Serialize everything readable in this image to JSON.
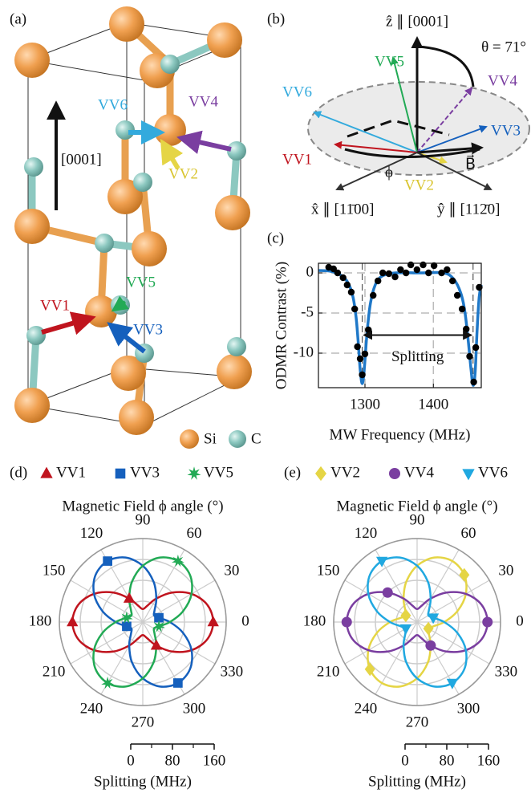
{
  "panels": {
    "a": {
      "label": "(a)",
      "vv6": "VV6",
      "vv4": "VV4",
      "direction": "[0001]",
      "vv2": "VV2",
      "vv5": "VV5",
      "vv1": "VV1",
      "vv3": "VV3",
      "legend": [
        "Si",
        "C"
      ]
    },
    "b": {
      "label": "(b)",
      "z_axis": "ẑ ∥ [0001]",
      "theta": "θ = 71°",
      "vv5": "VV5",
      "vv4": "VV4",
      "vv6": "VV6",
      "vv3": "VV3",
      "vv1": "VV1",
      "vv2": "VV2",
      "field": "B⃗",
      "phi": "ϕ",
      "x_axis": "x̂ ∥ [11̄00]",
      "y_axis": "ŷ ∥ [112̄0]"
    }
  },
  "chart_data": [
    {
      "type": "line",
      "label": "(c)",
      "xlabel": "MW Frequency (MHz)",
      "ylabel": "ODMR Contrast (%)",
      "annotation": "Splitting",
      "xlim": [
        1232,
        1470
      ],
      "ylim": [
        -14.3,
        1.2
      ],
      "xticks": [
        1300,
        1400
      ],
      "yticks": [
        0,
        -5,
        -10
      ],
      "grid": true,
      "series": [
        {
          "mode": "markers",
          "color": "#000000",
          "x": [
            1247,
            1254,
            1260,
            1268,
            1274,
            1280,
            1285,
            1289,
            1293,
            1296,
            1300,
            1305,
            1312,
            1319,
            1326,
            1335,
            1344,
            1352,
            1360,
            1367,
            1376,
            1385,
            1393,
            1401,
            1412,
            1420,
            1428,
            1435,
            1442,
            1448,
            1453,
            1459,
            1462,
            1467
          ],
          "values": [
            0.7,
            0.5,
            0,
            -0.6,
            -1.5,
            -2.4,
            -4.5,
            -9.2,
            -10.7,
            -12.7,
            -10.1,
            -7.1,
            -2.8,
            -1,
            0,
            -0.1,
            -0.5,
            0.4,
            0,
            1,
            0.4,
            1,
            0,
            0.9,
            0,
            0.4,
            -1,
            -2.8,
            -4.5,
            -7,
            -10.4,
            -13.6,
            -9.3,
            -1.8
          ]
        },
        {
          "mode": "line",
          "color": "#1f78c8",
          "x": [
            1232,
            1250,
            1265,
            1275,
            1282,
            1287,
            1290,
            1293,
            1296,
            1299,
            1303,
            1308,
            1315,
            1325,
            1345,
            1380,
            1415,
            1430,
            1440,
            1446,
            1451,
            1455,
            1458,
            1461,
            1464,
            1467,
            1470
          ],
          "values": [
            0.3,
            0.2,
            -0.3,
            -1.2,
            -2.8,
            -5.5,
            -8.5,
            -12,
            -13.8,
            -12,
            -7.5,
            -3.8,
            -1.5,
            -0.4,
            0,
            0,
            0,
            -0.8,
            -2.5,
            -4.8,
            -8.5,
            -12,
            -14,
            -12.5,
            -7,
            -3,
            -1.5
          ]
        }
      ]
    },
    {
      "type": "polar",
      "label": "(d)",
      "title": "Magnetic Field ϕ angle (°)",
      "rlabel": "Splitting (MHz)",
      "rlim": [
        0,
        160
      ],
      "rticks": [
        0,
        80,
        160
      ],
      "thetaticks": [
        0,
        30,
        60,
        90,
        120,
        150,
        180,
        210,
        240,
        270,
        300,
        330
      ],
      "curve_theta": [
        0,
        15,
        30,
        45,
        60,
        75,
        90,
        105,
        120,
        135,
        150,
        165,
        180,
        195,
        210,
        225,
        240,
        255,
        270,
        285,
        300,
        315,
        330,
        345
      ],
      "series": [
        {
          "name": "VV1",
          "color": "#c0141e",
          "marker": "triangle",
          "theta": [
            0,
            120,
            180,
            300
          ],
          "values": [
            135,
            52,
            135,
            52
          ],
          "curve": [
            135,
            128,
            108,
            80,
            52,
            32,
            25,
            32,
            52,
            80,
            108,
            128,
            135,
            128,
            108,
            80,
            52,
            32,
            25,
            32,
            52,
            80,
            108,
            128
          ]
        },
        {
          "name": "VV3",
          "color": "#1560bd",
          "marker": "square",
          "theta": [
            15,
            120,
            195,
            300
          ],
          "values": [
            32,
            135,
            32,
            135
          ],
          "curve": [
            52,
            32,
            25,
            32,
            52,
            80,
            108,
            128,
            135,
            128,
            108,
            80,
            52,
            32,
            25,
            32,
            52,
            80,
            108,
            128,
            135,
            128,
            108,
            80
          ]
        },
        {
          "name": "VV5",
          "color": "#22aa55",
          "marker": "star",
          "theta": [
            60,
            165,
            240,
            345
          ],
          "values": [
            135,
            32,
            135,
            32
          ],
          "curve": [
            52,
            80,
            108,
            128,
            135,
            128,
            108,
            80,
            52,
            32,
            25,
            32,
            52,
            80,
            108,
            128,
            135,
            128,
            108,
            80,
            52,
            32,
            25,
            32
          ]
        }
      ]
    },
    {
      "type": "polar",
      "label": "(e)",
      "title": "Magnetic Field ϕ angle (°)",
      "rlabel": "Splitting (MHz)",
      "rlim": [
        0,
        160
      ],
      "rticks": [
        0,
        80,
        160
      ],
      "thetaticks": [
        0,
        30,
        60,
        90,
        120,
        150,
        180,
        210,
        240,
        270,
        300,
        330
      ],
      "curve_theta": [
        0,
        15,
        30,
        45,
        60,
        75,
        90,
        105,
        120,
        135,
        150,
        165,
        180,
        195,
        210,
        225,
        240,
        255,
        270,
        285,
        300,
        315,
        330,
        345
      ],
      "series": [
        {
          "name": "VV2",
          "color": "#e5d545",
          "marker": "diamond",
          "theta": [
            45,
            150,
            225,
            330
          ],
          "values": [
            128,
            25,
            128,
            25
          ],
          "curve": [
            52,
            80,
            108,
            128,
            135,
            128,
            108,
            80,
            52,
            32,
            25,
            32,
            52,
            80,
            108,
            128,
            135,
            128,
            108,
            80,
            52,
            32,
            25,
            32
          ]
        },
        {
          "name": "VV4",
          "color": "#7a3ea0",
          "marker": "circle",
          "theta": [
            0,
            135,
            180,
            300
          ],
          "values": [
            135,
            80,
            135,
            52
          ],
          "curve": [
            135,
            128,
            108,
            80,
            52,
            32,
            25,
            32,
            52,
            80,
            108,
            128,
            135,
            128,
            108,
            80,
            52,
            32,
            25,
            32,
            52,
            80,
            108,
            128
          ]
        },
        {
          "name": "VV6",
          "color": "#20a8e0",
          "marker": "triangle-down",
          "theta": [
            15,
            120,
            210,
            300
          ],
          "values": [
            32,
            135,
            25,
            135
          ],
          "curve": [
            52,
            32,
            25,
            32,
            52,
            80,
            108,
            128,
            135,
            128,
            108,
            80,
            52,
            32,
            25,
            32,
            52,
            80,
            108,
            128,
            135,
            128,
            108,
            80
          ]
        }
      ]
    }
  ]
}
